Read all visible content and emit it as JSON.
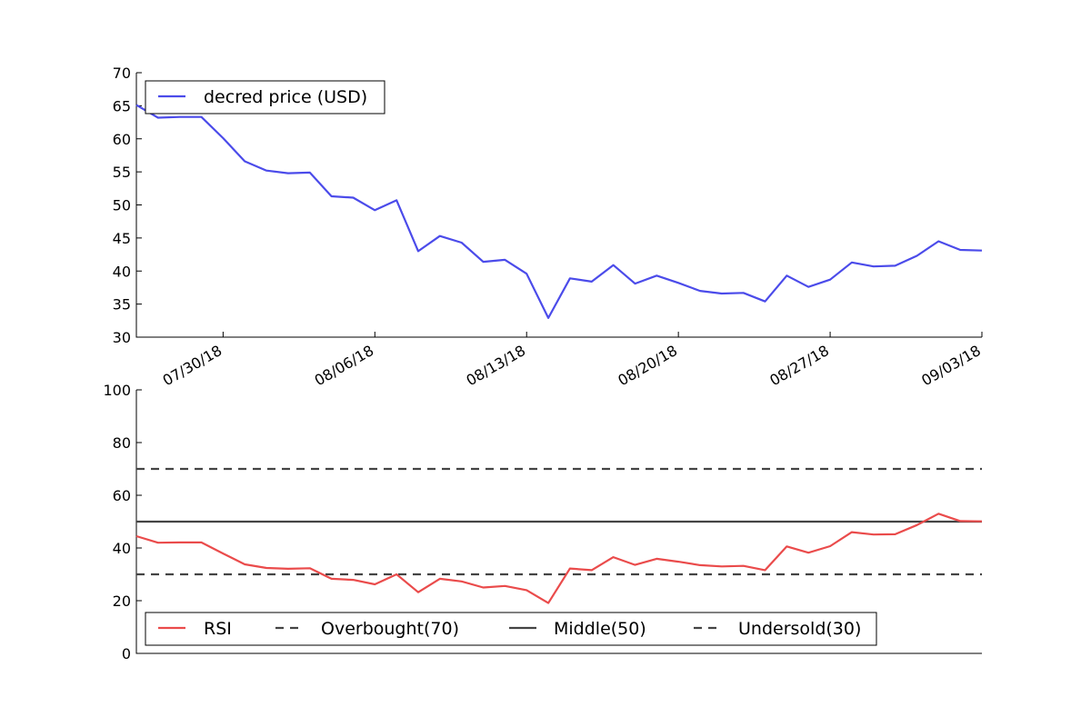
{
  "chart_data": [
    {
      "type": "line",
      "title": "",
      "xlabel": "",
      "ylabel": "",
      "ylim": [
        30,
        70
      ],
      "yticks": [
        30,
        35,
        40,
        45,
        50,
        55,
        60,
        65,
        70
      ],
      "x_tick_labels": [
        "07/30/18",
        "08/06/18",
        "08/13/18",
        "08/20/18",
        "08/27/18",
        "09/03/18"
      ],
      "legend_position": "top-left",
      "grid": false,
      "series": [
        {
          "name": "decred price (USD)",
          "color": "#4b4bea",
          "x": [
            "07/26/18",
            "07/27/18",
            "07/28/18",
            "07/29/18",
            "07/30/18",
            "07/31/18",
            "08/01/18",
            "08/02/18",
            "08/03/18",
            "08/04/18",
            "08/05/18",
            "08/06/18",
            "08/07/18",
            "08/08/18",
            "08/09/18",
            "08/10/18",
            "08/11/18",
            "08/12/18",
            "08/13/18",
            "08/14/18",
            "08/15/18",
            "08/16/18",
            "08/17/18",
            "08/18/18",
            "08/19/18",
            "08/20/18",
            "08/21/18",
            "08/22/18",
            "08/23/18",
            "08/24/18",
            "08/25/18",
            "08/26/18",
            "08/27/18",
            "08/28/18",
            "08/29/18",
            "08/30/18",
            "08/31/18",
            "09/01/18",
            "09/02/18",
            "09/03/18"
          ],
          "values": [
            65.1,
            63.2,
            63.3,
            63.3,
            60.1,
            56.6,
            55.2,
            54.8,
            54.9,
            51.3,
            51.1,
            49.2,
            50.7,
            43.0,
            45.3,
            44.3,
            41.4,
            41.7,
            39.6,
            32.9,
            38.9,
            38.4,
            40.9,
            38.1,
            39.3,
            38.2,
            37.0,
            36.6,
            36.7,
            35.4,
            39.3,
            37.6,
            38.7,
            41.3,
            40.7,
            40.8,
            42.3,
            44.5,
            43.2,
            43.1
          ]
        }
      ]
    },
    {
      "type": "line",
      "title": "",
      "xlabel": "",
      "ylabel": "",
      "ylim": [
        0,
        100
      ],
      "yticks": [
        0,
        20,
        40,
        60,
        80,
        100
      ],
      "legend_position": "bottom-left",
      "grid": false,
      "series": [
        {
          "name": "RSI",
          "color": "#ea4b4b",
          "style": "solid",
          "x": [
            "07/26/18",
            "07/27/18",
            "07/28/18",
            "07/29/18",
            "07/30/18",
            "07/31/18",
            "08/01/18",
            "08/02/18",
            "08/03/18",
            "08/04/18",
            "08/05/18",
            "08/06/18",
            "08/07/18",
            "08/08/18",
            "08/09/18",
            "08/10/18",
            "08/11/18",
            "08/12/18",
            "08/13/18",
            "08/14/18",
            "08/15/18",
            "08/16/18",
            "08/17/18",
            "08/18/18",
            "08/19/18",
            "08/20/18",
            "08/21/18",
            "08/22/18",
            "08/23/18",
            "08/24/18",
            "08/25/18",
            "08/26/18",
            "08/27/18",
            "08/28/18",
            "08/29/18",
            "08/30/18",
            "08/31/18",
            "09/01/18",
            "09/02/18",
            "09/03/18"
          ],
          "values": [
            44.5,
            42.0,
            42.1,
            42.1,
            37.9,
            33.8,
            32.4,
            32.1,
            32.3,
            28.3,
            27.9,
            26.2,
            30.0,
            23.2,
            28.3,
            27.3,
            25.0,
            25.6,
            24.0,
            19.1,
            32.2,
            31.6,
            36.5,
            33.6,
            35.9,
            34.8,
            33.5,
            33.0,
            33.2,
            31.6,
            40.6,
            38.2,
            40.7,
            46.0,
            45.1,
            45.2,
            48.7,
            53.0,
            50.2,
            50.1
          ]
        },
        {
          "name": "Overbought(70)",
          "color": "#444444",
          "style": "dashed",
          "constant": 70
        },
        {
          "name": "Middle(50)",
          "color": "#444444",
          "style": "solid",
          "constant": 50
        },
        {
          "name": "Undersold(30)",
          "color": "#444444",
          "style": "dashed",
          "constant": 30
        }
      ]
    }
  ]
}
